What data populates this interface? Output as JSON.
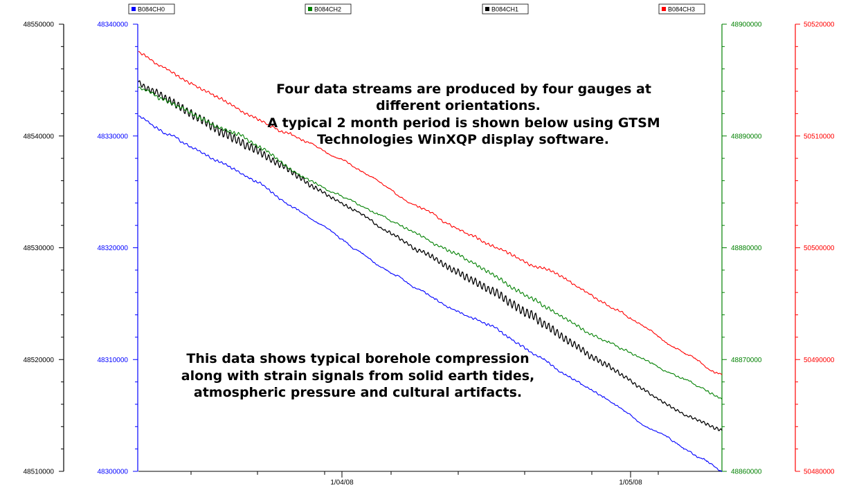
{
  "colors": {
    "ch0": "#0000ff",
    "ch1": "#000000",
    "ch2": "#008000",
    "ch3": "#ff0000"
  },
  "legend": [
    {
      "label": "B084CH0",
      "color": "#0000ff"
    },
    {
      "label": "B084CH2",
      "color": "#008000"
    },
    {
      "label": "B084CH1",
      "color": "#000000"
    },
    {
      "label": "B084CH3",
      "color": "#ff0000"
    }
  ],
  "annotations": {
    "top_lines": [
      "Four data streams are produced by four gauges at",
      "different orientations.",
      "A typical 2 month period is shown below using GTSM",
      "Technologies WinXQP display software."
    ],
    "bottom_lines": [
      "This data shows typical borehole compression",
      "along with strain signals from solid earth tides,",
      "atmospheric pressure and cultural artifacts."
    ]
  },
  "chart_data": {
    "type": "line",
    "title": "",
    "xlabel": "",
    "x_tick_labels": [
      "1/04/08",
      "1/05/08"
    ],
    "grid": false,
    "legend_position": "top",
    "axes": [
      {
        "id": "axis_ch1",
        "color": "#000000",
        "range": [
          48510000,
          48550000
        ],
        "tick_labels": [
          "48510000",
          "48520000",
          "48530000",
          "48540000",
          "48550000"
        ]
      },
      {
        "id": "axis_ch0",
        "color": "#0000ff",
        "range": [
          48300000,
          48340000
        ],
        "tick_labels": [
          "48300000",
          "48310000",
          "48320000",
          "48330000",
          "48340000"
        ]
      },
      {
        "id": "axis_ch2",
        "color": "#008000",
        "range": [
          48860000,
          48900000
        ],
        "tick_labels": [
          "48860000",
          "48870000",
          "48880000",
          "48890000",
          "48900000"
        ]
      },
      {
        "id": "axis_ch3",
        "color": "#ff0000",
        "range": [
          50480000,
          50520000
        ],
        "tick_labels": [
          "50480000",
          "50490000",
          "50500000",
          "50510000",
          "50520000"
        ]
      }
    ],
    "series": [
      {
        "name": "B084CH0",
        "axis": "axis_ch0",
        "color": "#0000ff",
        "approx_start": 48332000,
        "approx_end": 48300000
      },
      {
        "name": "B084CH1",
        "axis": "axis_ch1",
        "color": "#000000",
        "approx_start": 48545000,
        "approx_end": 48513500
      },
      {
        "name": "B084CH2",
        "axis": "axis_ch2",
        "color": "#008000",
        "approx_start": 48894500,
        "approx_end": 48866000
      },
      {
        "name": "B084CH3",
        "axis": "axis_ch3",
        "color": "#ff0000",
        "approx_start": 50517500,
        "approx_end": 50489000
      }
    ]
  }
}
